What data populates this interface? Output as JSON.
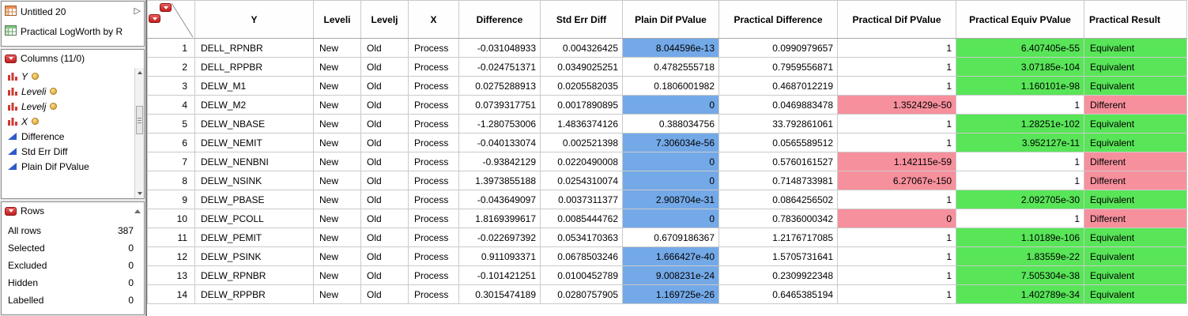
{
  "sidebar": {
    "tables_panel": {
      "items": [
        {
          "label": "Untitled 20",
          "current": true
        },
        {
          "label": "Practical LogWorth by R",
          "current": false
        }
      ]
    },
    "columns_panel": {
      "title": "Columns (11/0)",
      "items": [
        {
          "label": "Y",
          "type": "nominal",
          "badge": true
        },
        {
          "label": "Leveli",
          "type": "nominal",
          "badge": true
        },
        {
          "label": "Levelj",
          "type": "nominal",
          "badge": true
        },
        {
          "label": "X",
          "type": "nominal",
          "badge": true
        },
        {
          "label": "Difference",
          "type": "continuous",
          "badge": false
        },
        {
          "label": "Std Err Diff",
          "type": "continuous",
          "badge": false
        },
        {
          "label": "Plain Dif PValue",
          "type": "continuous",
          "badge": false
        }
      ]
    },
    "rows_panel": {
      "title": "Rows",
      "stats": [
        {
          "label": "All rows",
          "value": "387"
        },
        {
          "label": "Selected",
          "value": "0"
        },
        {
          "label": "Excluded",
          "value": "0"
        },
        {
          "label": "Hidden",
          "value": "0"
        },
        {
          "label": "Labelled",
          "value": "0"
        }
      ]
    }
  },
  "colors": {
    "plain_pvalue_highlight": "#74A9E8",
    "different_highlight": "#F7909D",
    "equivalent_highlight": "#58E558"
  },
  "table": {
    "columns": [
      "Y",
      "Leveli",
      "Levelj",
      "X",
      "Difference",
      "Std Err Diff",
      "Plain Dif PValue",
      "Practical Difference",
      "Practical Dif PValue",
      "Practical Equiv PValue",
      "Practical Result"
    ],
    "rows": [
      {
        "n": "1",
        "y": "DELL_RPNBR",
        "leveli": "New",
        "levelj": "Old",
        "x": "Process",
        "diff": "-0.031048933",
        "se": "0.004326425",
        "plain_p": "8.044596e-13",
        "plain_hl": true,
        "prac_diff": "0.0990979657",
        "prac_dif_p": "1",
        "prac_dif_hl": false,
        "prac_eq_p": "6.407405e-55",
        "prac_eq_hl": true,
        "result": "Equivalent"
      },
      {
        "n": "2",
        "y": "DELL_RPPBR",
        "leveli": "New",
        "levelj": "Old",
        "x": "Process",
        "diff": "-0.024751371",
        "se": "0.0349025251",
        "plain_p": "0.4782555718",
        "plain_hl": false,
        "prac_diff": "0.7959556871",
        "prac_dif_p": "1",
        "prac_dif_hl": false,
        "prac_eq_p": "3.07185e-104",
        "prac_eq_hl": true,
        "result": "Equivalent"
      },
      {
        "n": "3",
        "y": "DELW_M1",
        "leveli": "New",
        "levelj": "Old",
        "x": "Process",
        "diff": "0.0275288913",
        "se": "0.0205582035",
        "plain_p": "0.1806001982",
        "plain_hl": false,
        "prac_diff": "0.4687012219",
        "prac_dif_p": "1",
        "prac_dif_hl": false,
        "prac_eq_p": "1.160101e-98",
        "prac_eq_hl": true,
        "result": "Equivalent"
      },
      {
        "n": "4",
        "y": "DELW_M2",
        "leveli": "New",
        "levelj": "Old",
        "x": "Process",
        "diff": "0.0739317751",
        "se": "0.0017890895",
        "plain_p": "0",
        "plain_hl": true,
        "prac_diff": "0.0469883478",
        "prac_dif_p": "1.352429e-50",
        "prac_dif_hl": true,
        "prac_eq_p": "1",
        "prac_eq_hl": false,
        "result": "Different"
      },
      {
        "n": "5",
        "y": "DELW_NBASE",
        "leveli": "New",
        "levelj": "Old",
        "x": "Process",
        "diff": "-1.280753006",
        "se": "1.4836374126",
        "plain_p": "0.388034756",
        "plain_hl": false,
        "prac_diff": "33.792861061",
        "prac_dif_p": "1",
        "prac_dif_hl": false,
        "prac_eq_p": "1.28251e-102",
        "prac_eq_hl": true,
        "result": "Equivalent"
      },
      {
        "n": "6",
        "y": "DELW_NEMIT",
        "leveli": "New",
        "levelj": "Old",
        "x": "Process",
        "diff": "-0.040133074",
        "se": "0.002521398",
        "plain_p": "7.306034e-56",
        "plain_hl": true,
        "prac_diff": "0.0565589512",
        "prac_dif_p": "1",
        "prac_dif_hl": false,
        "prac_eq_p": "3.952127e-11",
        "prac_eq_hl": true,
        "result": "Equivalent"
      },
      {
        "n": "7",
        "y": "DELW_NENBNI",
        "leveli": "New",
        "levelj": "Old",
        "x": "Process",
        "diff": "-0.93842129",
        "se": "0.0220490008",
        "plain_p": "0",
        "plain_hl": true,
        "prac_diff": "0.5760161527",
        "prac_dif_p": "1.142115e-59",
        "prac_dif_hl": true,
        "prac_eq_p": "1",
        "prac_eq_hl": false,
        "result": "Different"
      },
      {
        "n": "8",
        "y": "DELW_NSINK",
        "leveli": "New",
        "levelj": "Old",
        "x": "Process",
        "diff": "1.3973855188",
        "se": "0.0254310074",
        "plain_p": "0",
        "plain_hl": true,
        "prac_diff": "0.7148733981",
        "prac_dif_p": "6.27067e-150",
        "prac_dif_hl": true,
        "prac_eq_p": "1",
        "prac_eq_hl": false,
        "result": "Different"
      },
      {
        "n": "9",
        "y": "DELW_PBASE",
        "leveli": "New",
        "levelj": "Old",
        "x": "Process",
        "diff": "-0.043649097",
        "se": "0.0037311377",
        "plain_p": "2.908704e-31",
        "plain_hl": true,
        "prac_diff": "0.0864256502",
        "prac_dif_p": "1",
        "prac_dif_hl": false,
        "prac_eq_p": "2.092705e-30",
        "prac_eq_hl": true,
        "result": "Equivalent"
      },
      {
        "n": "10",
        "y": "DELW_PCOLL",
        "leveli": "New",
        "levelj": "Old",
        "x": "Process",
        "diff": "1.8169399617",
        "se": "0.0085444762",
        "plain_p": "0",
        "plain_hl": true,
        "prac_diff": "0.7836000342",
        "prac_dif_p": "0",
        "prac_dif_hl": true,
        "prac_eq_p": "1",
        "prac_eq_hl": false,
        "result": "Different"
      },
      {
        "n": "11",
        "y": "DELW_PEMIT",
        "leveli": "New",
        "levelj": "Old",
        "x": "Process",
        "diff": "-0.022697392",
        "se": "0.0534170363",
        "plain_p": "0.6709186367",
        "plain_hl": false,
        "prac_diff": "1.2176717085",
        "prac_dif_p": "1",
        "prac_dif_hl": false,
        "prac_eq_p": "1.10189e-106",
        "prac_eq_hl": true,
        "result": "Equivalent"
      },
      {
        "n": "12",
        "y": "DELW_PSINK",
        "leveli": "New",
        "levelj": "Old",
        "x": "Process",
        "diff": "0.911093371",
        "se": "0.0678503246",
        "plain_p": "1.666427e-40",
        "plain_hl": true,
        "prac_diff": "1.5705731641",
        "prac_dif_p": "1",
        "prac_dif_hl": false,
        "prac_eq_p": "1.83559e-22",
        "prac_eq_hl": true,
        "result": "Equivalent"
      },
      {
        "n": "13",
        "y": "DELW_RPNBR",
        "leveli": "New",
        "levelj": "Old",
        "x": "Process",
        "diff": "-0.101421251",
        "se": "0.0100452789",
        "plain_p": "9.008231e-24",
        "plain_hl": true,
        "prac_diff": "0.2309922348",
        "prac_dif_p": "1",
        "prac_dif_hl": false,
        "prac_eq_p": "7.505304e-38",
        "prac_eq_hl": true,
        "result": "Equivalent"
      },
      {
        "n": "14",
        "y": "DELW_RPPBR",
        "leveli": "New",
        "levelj": "Old",
        "x": "Process",
        "diff": "0.3015474189",
        "se": "0.0280757905",
        "plain_p": "1.169725e-26",
        "plain_hl": true,
        "prac_diff": "0.6465385194",
        "prac_dif_p": "1",
        "prac_dif_hl": false,
        "prac_eq_p": "1.402789e-34",
        "prac_eq_hl": true,
        "result": "Equivalent"
      }
    ]
  }
}
